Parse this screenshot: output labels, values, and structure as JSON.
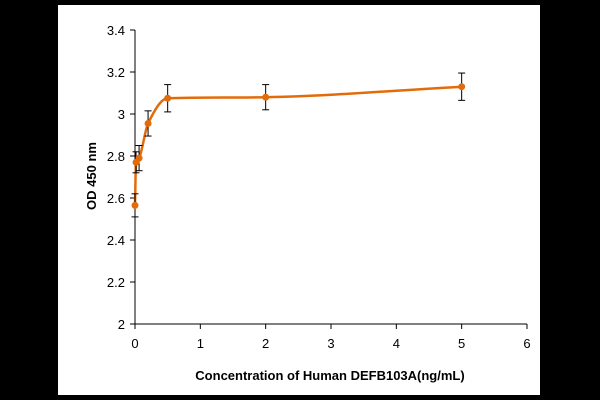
{
  "chart_data": {
    "type": "scatter",
    "title": "",
    "xlabel": "Concentration of Human DEFB103A(ng/mL)",
    "ylabel": "OD 450 nm",
    "xlim": [
      0,
      6
    ],
    "ylim": [
      2,
      3.4
    ],
    "x_ticks": [
      0,
      1,
      2,
      3,
      4,
      5,
      6
    ],
    "y_ticks": [
      2,
      2.2,
      2.4,
      2.6,
      2.8,
      3,
      3.2,
      3.4
    ],
    "y_tick_labels": [
      "2",
      "2.2",
      "2.4",
      "2.6",
      "2.8",
      "3",
      "3.2",
      "3.4"
    ],
    "grid": false,
    "smooth_line": true,
    "color": "#E36C0A",
    "series": [
      {
        "x": [
          0,
          0.0156,
          0.0625,
          0.2,
          0.5,
          2,
          5
        ],
        "y": [
          2.565,
          2.77,
          2.79,
          2.955,
          3.075,
          3.08,
          3.13
        ],
        "error": [
          0.055,
          0.05,
          0.06,
          0.06,
          0.065,
          0.06,
          0.065
        ]
      }
    ]
  }
}
